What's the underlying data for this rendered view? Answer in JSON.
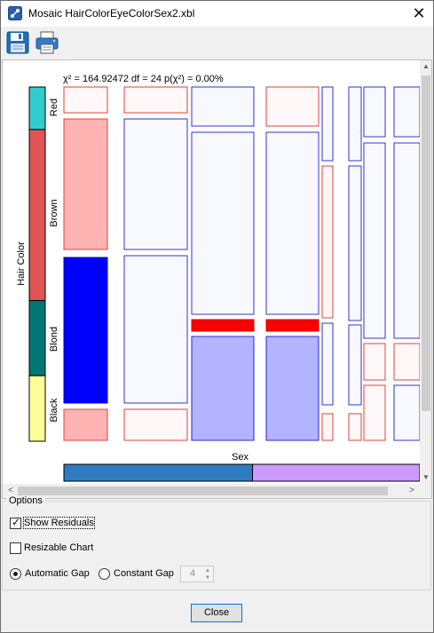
{
  "window": {
    "title": "Mosaic HairColorEyeColorSex2.xbl",
    "close_glyph": "✕"
  },
  "toolbar": {
    "items": [
      {
        "name": "save",
        "icon": "floppy-disk-icon"
      },
      {
        "name": "print",
        "icon": "printer-icon"
      }
    ]
  },
  "chart": {
    "statistic": "χ² = 164.92472 df = 24 p(χ²) = 0.00%",
    "y_axis_label": "Hair Color",
    "x_axis_label": "Sex",
    "row_labels": [
      "Red",
      "Brown",
      "Blond",
      "Black"
    ]
  },
  "chart_data": {
    "type": "mosaic",
    "row_variable": "Hair Color",
    "column_variable": "Sex",
    "rows": [
      {
        "label": "Red",
        "color": "#33cccc"
      },
      {
        "label": "Brown",
        "color": "#dd5555"
      },
      {
        "label": "Blond",
        "color": "#007777"
      },
      {
        "label": "Black",
        "color": "#ffff99"
      }
    ],
    "row_fractions": [
      0.12,
      0.483,
      0.212,
      0.185
    ],
    "column_categories": [
      {
        "color": "#2f7bbf"
      },
      {
        "color": "#cc99ff"
      }
    ],
    "column_fractions": [
      0.53,
      0.47
    ],
    "residual_colors": {
      "positive_strong": "#0000ff",
      "positive_weak": "#b3b3ff",
      "negative_strong": "#ff0000",
      "negative_weak": "#ffb3b3",
      "neutral_positive": "#f8f8ff",
      "neutral_negative": "#fff8f8"
    },
    "p_value_percent": 0.0,
    "chi_square": 164.92472,
    "df": 24
  },
  "options": {
    "legend": "Options",
    "show_residuals": {
      "label": "Show Residuals",
      "checked": true
    },
    "resizable_chart": {
      "label": "Resizable Chart",
      "checked": false
    },
    "gap_mode": {
      "automatic": {
        "label": "Automatic Gap",
        "selected": true
      },
      "constant": {
        "label": "Constant Gap",
        "selected": false
      }
    },
    "gap_value": "4"
  },
  "buttons": {
    "close": "Close"
  },
  "scrollbars": {
    "up": "▲",
    "down": "▼",
    "left": "<",
    "right": ">"
  }
}
